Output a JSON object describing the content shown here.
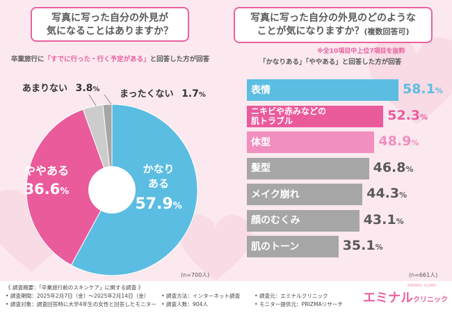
{
  "left": {
    "question_line1": "写真に写った自分の外見が",
    "question_line2": "気になることはありますか？",
    "subtitle_prefix": "卒業旅行に",
    "subtitle_highlight": "「すでに行った・行く予定がある」",
    "subtitle_suffix": "と回答した方が回答",
    "n_label": "(n=700人)"
  },
  "right": {
    "question_line1": "写真に写った自分の外見のどのような",
    "question_line2": "ことが気になりますか？",
    "question_suffix": "(複数回答可)",
    "note": "※全10項目中上位7項目を抜粋",
    "subtitle": "「かなりある」「ややある」と回答した方が回答",
    "n_label": "(n=661人)"
  },
  "chart_data": [
    {
      "type": "pie",
      "title": "写真に写った自分の外見が気になることはありますか？",
      "categories": [
        "かなりある",
        "ややある",
        "あまりない",
        "まったくない"
      ],
      "values": [
        57.9,
        36.6,
        3.8,
        1.7
      ],
      "unit": "%",
      "colors": [
        "#5bbde2",
        "#ea5b9c",
        "#cccccc",
        "#a6a6a6"
      ],
      "n": "(n=700人)"
    },
    {
      "type": "bar",
      "orientation": "horizontal",
      "title": "写真に写った自分の外見のどのようなことが気になりますか？(複数回答可)",
      "categories": [
        "表情",
        "ニキビや赤みなどの\n肌トラブル",
        "体型",
        "髪型",
        "メイク崩れ",
        "顔のむくみ",
        "肌のトーン"
      ],
      "values": [
        58.1,
        52.3,
        48.9,
        46.8,
        44.3,
        43.1,
        35.1
      ],
      "unit": "%",
      "colors": [
        "#5bbde2",
        "#ea5b9c",
        "#f18fc0",
        "#a6a6a6",
        "#a6a6a6",
        "#a6a6a6",
        "#a6a6a6"
      ],
      "value_colors": [
        "#5bbde2",
        "#ea5b9c",
        "#f18fc0",
        "#595959",
        "#595959",
        "#595959",
        "#595959"
      ],
      "n": "(n=661人)"
    }
  ],
  "footer": {
    "overview": "《 調査概要：「卒業旅行前のスキンケア」に関する調査 》",
    "period": "• 調査期間：2025年2月7日（金）～2025年2月14日（金）",
    "method": "• 調査方法：インターネット調査",
    "sponsor": "• 調査元：エミナルクリニック",
    "target": "• 調査対象：調査回答時に大学4年生の女性と回答したモニター",
    "count": "• 調査人数：904人",
    "provider": "• モニター提供元：PRIZMAリサーチ"
  },
  "logo": {
    "main": "エミナル",
    "sub": "クリニック",
    "tiny": "EMINAL CLINIC"
  }
}
